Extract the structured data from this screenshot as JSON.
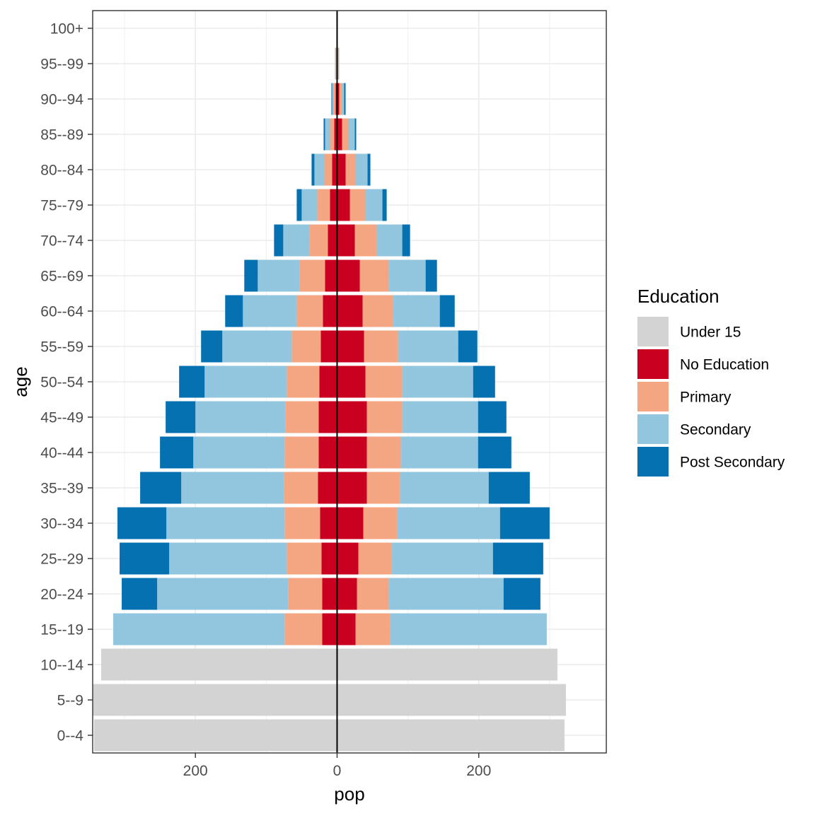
{
  "chart_data": {
    "type": "bar",
    "orientation": "horizontal",
    "layout": "population-pyramid",
    "xlabel": "pop",
    "ylabel": "age",
    "xlim": [
      -345,
      380
    ],
    "x_ticks": [
      -200,
      0,
      200
    ],
    "x_tick_labels": [
      "200",
      "0",
      "200"
    ],
    "grid": true,
    "legend_position": "right",
    "categories": [
      "0--4",
      "5--9",
      "10--14",
      "15--19",
      "20--24",
      "25--29",
      "30--34",
      "35--39",
      "40--44",
      "45--49",
      "50--54",
      "55--59",
      "60--64",
      "65--69",
      "70--74",
      "75--79",
      "80--84",
      "85--89",
      "90--94",
      "95--99",
      "100+"
    ],
    "legend": {
      "title": "Education",
      "entries": [
        "Under 15",
        "No Education",
        "Primary",
        "Secondary",
        "Post Secondary"
      ]
    },
    "colors": {
      "Under 15": "#d3d3d3",
      "No Education": "#ca0020",
      "Primary": "#f4a582",
      "Secondary": "#92c5de",
      "Post Secondary": "#0571b0"
    },
    "series": [
      {
        "name": "Under 15",
        "side": "left",
        "values": [
          343,
          345,
          333,
          0,
          0,
          0,
          0,
          0,
          0,
          0,
          0,
          0,
          0,
          0,
          0,
          0,
          0,
          0,
          0,
          0,
          0
        ]
      },
      {
        "name": "No Education",
        "side": "left",
        "values": [
          0,
          0,
          0,
          21,
          21,
          22,
          24,
          27,
          26,
          26,
          25,
          23,
          20,
          17,
          13,
          10,
          7,
          4,
          2,
          1,
          0
        ]
      },
      {
        "name": "Primary",
        "side": "left",
        "values": [
          0,
          0,
          0,
          53,
          48,
          49,
          50,
          48,
          48,
          47,
          46,
          41,
          37,
          36,
          26,
          18,
          11,
          6,
          3,
          1,
          0
        ]
      },
      {
        "name": "Secondary",
        "side": "left",
        "values": [
          0,
          0,
          0,
          242,
          185,
          166,
          167,
          145,
          129,
          127,
          116,
          98,
          76,
          59,
          37,
          22,
          14,
          7,
          2,
          1,
          0
        ]
      },
      {
        "name": "Post Secondary",
        "side": "left",
        "values": [
          0,
          0,
          0,
          0,
          50,
          70,
          69,
          58,
          47,
          42,
          36,
          30,
          25,
          19,
          13,
          7,
          4,
          2,
          1,
          0,
          0
        ]
      },
      {
        "name": "Under 15",
        "side": "right",
        "values": [
          321,
          323,
          311,
          0,
          0,
          0,
          0,
          0,
          0,
          0,
          0,
          0,
          0,
          0,
          0,
          0,
          0,
          0,
          0,
          0,
          0
        ]
      },
      {
        "name": "No Education",
        "side": "right",
        "values": [
          0,
          0,
          0,
          26,
          28,
          30,
          37,
          42,
          42,
          42,
          40,
          38,
          36,
          32,
          25,
          18,
          12,
          7,
          3,
          1,
          0
        ]
      },
      {
        "name": "Primary",
        "side": "right",
        "values": [
          0,
          0,
          0,
          49,
          45,
          47,
          48,
          47,
          48,
          50,
          52,
          48,
          43,
          41,
          31,
          22,
          14,
          9,
          4,
          1,
          0
        ]
      },
      {
        "name": "Secondary",
        "side": "right",
        "values": [
          0,
          0,
          0,
          221,
          162,
          143,
          145,
          125,
          109,
          107,
          100,
          85,
          66,
          52,
          36,
          24,
          17,
          9,
          3,
          1,
          0
        ]
      },
      {
        "name": "Post Secondary",
        "side": "right",
        "values": [
          0,
          0,
          0,
          0,
          52,
          71,
          70,
          58,
          47,
          40,
          31,
          27,
          21,
          16,
          11,
          6,
          4,
          2,
          2,
          0,
          0
        ]
      }
    ]
  }
}
